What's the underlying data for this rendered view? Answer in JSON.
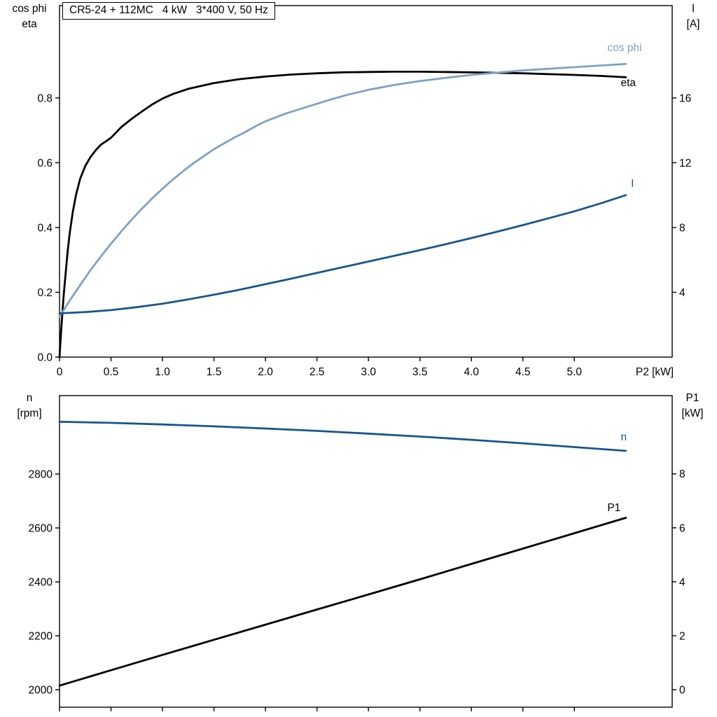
{
  "title_box": {
    "text": "CR5-24 + 112MC   4 kW   3*400 V, 50 Hz"
  },
  "top_chart": {
    "left_axis_label_line1": "cos phi",
    "left_axis_label_line2": "eta",
    "right_axis_label_line1": "I",
    "right_axis_label_line2": "[A]"
  },
  "bottom_chart": {
    "left_axis_label_line1": "n",
    "left_axis_label_line2": "[rpm]",
    "right_axis_label_line1": "P1",
    "right_axis_label_line2": "[kW]"
  },
  "colors": {
    "black": "#000000",
    "light_blue": "#7da2c4",
    "dark_blue": "#17568c"
  },
  "chart_data": [
    {
      "type": "line",
      "title": "CR5-24 + 112MC   4 kW   3*400 V, 50 Hz",
      "xlabel": "P2 [kW]",
      "xlim": [
        0,
        5.95
      ],
      "x_ticks": [
        0,
        0.5,
        1,
        1.5,
        2,
        2.5,
        3,
        3.5,
        4,
        4.5,
        5
      ],
      "x_tick_labels": [
        "0",
        "0.5",
        "1.0",
        "1.5",
        "2.0",
        "2.5",
        "3.0",
        "3.5",
        "4.0",
        "4.5",
        "5.0"
      ],
      "left_axis": {
        "label": "cos phi / eta",
        "lim": [
          0,
          1.085
        ],
        "ticks": [
          0,
          0.2,
          0.4,
          0.6,
          0.8
        ],
        "tick_labels": [
          "0.0",
          "0.2",
          "0.4",
          "0.6",
          "0.8"
        ]
      },
      "right_axis": {
        "label": "I [A]",
        "lim": [
          0,
          21.7
        ],
        "ticks": [
          4,
          8,
          12,
          16
        ],
        "tick_labels": [
          "4",
          "8",
          "12",
          "16"
        ]
      },
      "series": [
        {
          "name": "eta",
          "axis": "left",
          "color": "#000000",
          "x": [
            0,
            0.02,
            0.04,
            0.06,
            0.08,
            0.1,
            0.13,
            0.16,
            0.2,
            0.25,
            0.3,
            0.35,
            0.4,
            0.45,
            0.5,
            0.6,
            0.7,
            0.8,
            0.9,
            1.0,
            1.1,
            1.25,
            1.5,
            1.75,
            2.0,
            2.25,
            2.5,
            2.75,
            3.0,
            3.25,
            3.5,
            4.0,
            4.5,
            5.0,
            5.25,
            5.5
          ],
          "y": [
            0,
            0.1,
            0.19,
            0.26,
            0.33,
            0.385,
            0.45,
            0.5,
            0.55,
            0.59,
            0.617,
            0.638,
            0.655,
            0.666,
            0.677,
            0.71,
            0.735,
            0.758,
            0.78,
            0.798,
            0.812,
            0.828,
            0.846,
            0.858,
            0.866,
            0.872,
            0.876,
            0.879,
            0.88,
            0.881,
            0.881,
            0.879,
            0.876,
            0.871,
            0.868,
            0.864
          ]
        },
        {
          "name": "cos phi",
          "axis": "left",
          "color": "#7da2c4",
          "x": [
            0,
            0.1,
            0.2,
            0.3,
            0.4,
            0.5,
            0.6,
            0.7,
            0.8,
            0.9,
            1.0,
            1.1,
            1.2,
            1.3,
            1.4,
            1.5,
            1.6,
            1.7,
            1.8,
            1.9,
            2.0,
            2.2,
            2.4,
            2.6,
            2.8,
            3.0,
            3.25,
            3.5,
            3.75,
            4.0,
            4.25,
            4.5,
            4.75,
            5.0,
            5.25,
            5.5
          ],
          "y": [
            0.125,
            0.175,
            0.222,
            0.268,
            0.31,
            0.35,
            0.388,
            0.424,
            0.458,
            0.49,
            0.52,
            0.548,
            0.574,
            0.598,
            0.62,
            0.642,
            0.66,
            0.678,
            0.694,
            0.712,
            0.728,
            0.752,
            0.772,
            0.792,
            0.81,
            0.825,
            0.84,
            0.852,
            0.862,
            0.871,
            0.878,
            0.885,
            0.89,
            0.895,
            0.9,
            0.905
          ]
        },
        {
          "name": "I",
          "axis": "right",
          "color": "#17568c",
          "x": [
            0,
            0.25,
            0.5,
            0.75,
            1.0,
            1.25,
            1.5,
            1.75,
            2.0,
            2.25,
            2.5,
            2.75,
            3.0,
            3.25,
            3.5,
            3.75,
            4.0,
            4.25,
            4.5,
            4.75,
            5.0,
            5.25,
            5.5
          ],
          "y": [
            2.7,
            2.78,
            2.9,
            3.08,
            3.3,
            3.56,
            3.85,
            4.16,
            4.5,
            4.84,
            5.2,
            5.55,
            5.9,
            6.25,
            6.6,
            6.97,
            7.35,
            7.74,
            8.15,
            8.57,
            9.0,
            9.48,
            10.0
          ]
        }
      ],
      "annotations": [
        {
          "text": "cos phi",
          "x": 5.32,
          "y": 0.945,
          "axis": "left",
          "color": "#7da2c4",
          "anchor": "start"
        },
        {
          "text": "eta",
          "x": 5.45,
          "y": 0.836,
          "axis": "left",
          "color": "#000000",
          "anchor": "start"
        },
        {
          "text": "I",
          "x": 5.55,
          "y": 10.5,
          "axis": "right",
          "color": "#17568c",
          "anchor": "start"
        }
      ]
    },
    {
      "type": "line",
      "title": "",
      "xlabel": "",
      "xlim": [
        0,
        5.95
      ],
      "x_ticks": [
        0,
        0.5,
        1,
        1.5,
        2,
        2.5,
        3,
        3.5,
        4,
        4.5,
        5
      ],
      "x_tick_labels": [],
      "left_axis": {
        "label": "n [rpm]",
        "lim": [
          1935,
          3091
        ],
        "ticks": [
          2000,
          2200,
          2400,
          2600,
          2800
        ],
        "tick_labels": [
          "2000",
          "2200",
          "2400",
          "2600",
          "2800"
        ]
      },
      "right_axis": {
        "label": "P1 [kW]",
        "lim": [
          -0.65,
          10.9
        ],
        "ticks": [
          0,
          2,
          4,
          6,
          8
        ],
        "tick_labels": [
          "0",
          "2",
          "4",
          "6",
          "8"
        ]
      },
      "series": [
        {
          "name": "n",
          "axis": "left",
          "color": "#17568c",
          "x": [
            0,
            0.5,
            1,
            1.5,
            2,
            2.5,
            3,
            3.5,
            4,
            4.5,
            5,
            5.5
          ],
          "y": [
            2994,
            2990,
            2984,
            2977,
            2969,
            2960,
            2950,
            2939,
            2927,
            2914,
            2900,
            2886
          ]
        },
        {
          "name": "P1",
          "axis": "right",
          "color": "#000000",
          "x": [
            0,
            0.5,
            1,
            1.5,
            2,
            2.5,
            3,
            3.5,
            4,
            4.5,
            5,
            5.5
          ],
          "y": [
            0.15,
            0.72,
            1.29,
            1.85,
            2.41,
            2.97,
            3.53,
            4.09,
            4.66,
            5.23,
            5.8,
            6.37
          ]
        }
      ],
      "annotations": [
        {
          "text": "n",
          "x": 5.45,
          "y": 2925,
          "axis": "left",
          "color": "#17568c",
          "anchor": "start"
        },
        {
          "text": "P1",
          "x": 5.32,
          "y": 6.62,
          "axis": "right",
          "color": "#000000",
          "anchor": "start"
        }
      ]
    }
  ]
}
